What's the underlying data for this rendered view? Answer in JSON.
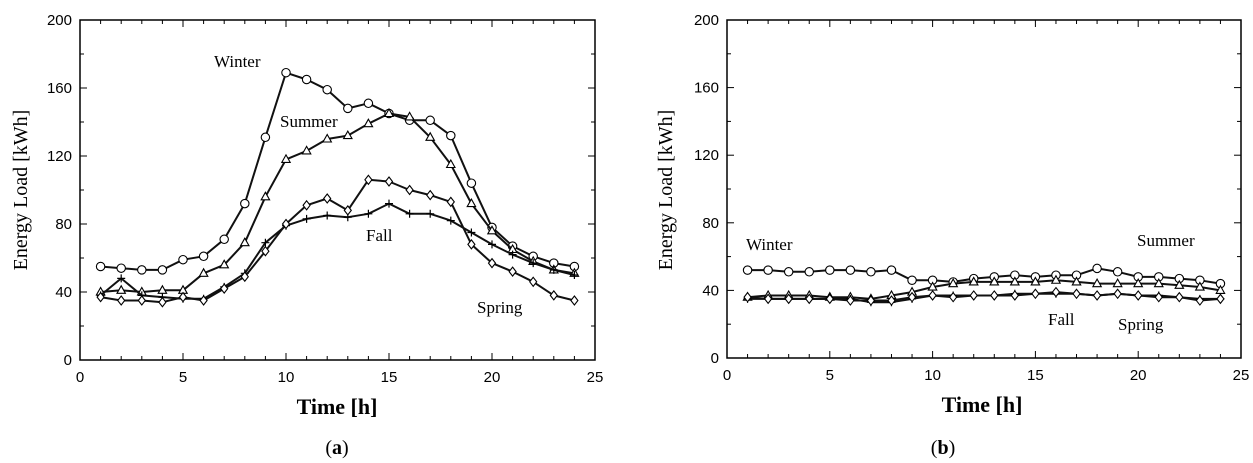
{
  "chart_data": [
    {
      "type": "line",
      "panel_id": "a",
      "caption_letter": "a",
      "xlabel": "Time [h]",
      "ylabel": "Energy Load [kWh]",
      "xlim": [
        0,
        25
      ],
      "ylim": [
        0,
        200
      ],
      "xticks": [
        "0",
        "5",
        "10",
        "15",
        "20",
        "25"
      ],
      "yticks": [
        "0",
        "40",
        "80",
        "120",
        "160",
        "200"
      ],
      "x": [
        1,
        2,
        3,
        4,
        5,
        6,
        7,
        8,
        9,
        10,
        11,
        12,
        13,
        14,
        15,
        16,
        17,
        18,
        19,
        20,
        21,
        22,
        23,
        24
      ],
      "series": [
        {
          "name": "Winter",
          "marker": "circle",
          "values": [
            55,
            54,
            53,
            53,
            59,
            61,
            71,
            92,
            131,
            169,
            165,
            159,
            148,
            151,
            145,
            141,
            141,
            132,
            104,
            78,
            67,
            61,
            57,
            55
          ]
        },
        {
          "name": "Summer",
          "marker": "triangle",
          "values": [
            40,
            41,
            40,
            41,
            41,
            51,
            56,
            69,
            96,
            118,
            123,
            130,
            132,
            139,
            145,
            143,
            131,
            115,
            92,
            76,
            65,
            58,
            53,
            51
          ]
        },
        {
          "name": "Fall",
          "marker": "plus",
          "values": [
            38,
            48,
            38,
            37,
            36,
            36,
            43,
            51,
            69,
            79,
            83,
            85,
            84,
            86,
            92,
            86,
            86,
            82,
            75,
            68,
            62,
            57,
            53,
            50
          ]
        },
        {
          "name": "Spring",
          "marker": "diamond",
          "values": [
            37,
            35,
            35,
            34,
            37,
            35,
            42,
            49,
            64,
            80,
            91,
            95,
            88,
            106,
            105,
            100,
            97,
            93,
            68,
            57,
            52,
            46,
            38,
            35
          ]
        }
      ]
    },
    {
      "type": "line",
      "panel_id": "b",
      "caption_letter": "b",
      "xlabel": "Time [h]",
      "ylabel": "Energy Load [kWh]",
      "xlim": [
        0,
        25
      ],
      "ylim": [
        0,
        200
      ],
      "xticks": [
        "0",
        "5",
        "10",
        "15",
        "20",
        "25"
      ],
      "yticks": [
        "0",
        "40",
        "80",
        "120",
        "160",
        "200"
      ],
      "x": [
        1,
        2,
        3,
        4,
        5,
        6,
        7,
        8,
        9,
        10,
        11,
        12,
        13,
        14,
        15,
        16,
        17,
        18,
        19,
        20,
        21,
        22,
        23,
        24
      ],
      "series": [
        {
          "name": "Winter",
          "marker": "circle",
          "values": [
            52,
            52,
            51,
            51,
            52,
            52,
            51,
            52,
            46,
            46,
            45,
            47,
            48,
            49,
            48,
            49,
            49,
            53,
            51,
            48,
            48,
            47,
            46,
            44
          ]
        },
        {
          "name": "Summer",
          "marker": "triangle",
          "values": [
            36,
            37,
            37,
            37,
            36,
            36,
            35,
            37,
            39,
            42,
            44,
            45,
            45,
            45,
            45,
            46,
            45,
            44,
            44,
            44,
            44,
            43,
            42,
            40
          ]
        },
        {
          "name": "Fall",
          "marker": "plus",
          "values": [
            35,
            35,
            35,
            35,
            35,
            35,
            33,
            33,
            35,
            37,
            37,
            37,
            37,
            38,
            38,
            38,
            38,
            37,
            38,
            37,
            37,
            36,
            35,
            35
          ]
        },
        {
          "name": "Spring",
          "marker": "diamond",
          "values": [
            36,
            35,
            35,
            35,
            35,
            34,
            34,
            34,
            36,
            37,
            36,
            37,
            37,
            37,
            38,
            39,
            38,
            37,
            38,
            37,
            36,
            36,
            34,
            35
          ]
        }
      ]
    }
  ]
}
